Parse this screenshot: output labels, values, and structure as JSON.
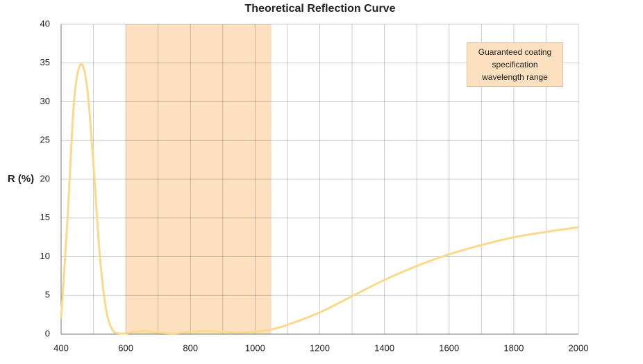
{
  "chart_data": {
    "type": "line",
    "title": "Theoretical Reflection Curve",
    "y_label": "R (%)",
    "annotation": "Guaranteed coating specification wavelength range",
    "band": [
      600,
      1050
    ],
    "band_color": "#fce0c0",
    "x": [
      400,
      420,
      440,
      460,
      480,
      500,
      520,
      540,
      560,
      580,
      600,
      650,
      700,
      750,
      800,
      850,
      900,
      950,
      1000,
      1050,
      1100,
      1200,
      1300,
      1400,
      1500,
      1600,
      1700,
      1800,
      1900,
      2000
    ],
    "series": [
      {
        "name": "R",
        "color": "#fad98a",
        "values": [
          2,
          15,
          30,
          34.8,
          32,
          22,
          10,
          3,
          0.5,
          0.1,
          0.1,
          0.4,
          0.2,
          0.1,
          0.3,
          0.4,
          0.3,
          0.2,
          0.3,
          0.6,
          1.2,
          2.8,
          4.9,
          7.0,
          8.8,
          10.3,
          11.5,
          12.5,
          13.2,
          13.8
        ]
      }
    ],
    "xlim": [
      400,
      2000
    ],
    "xticks": [
      400,
      600,
      800,
      1000,
      1200,
      1400,
      1600,
      1800,
      2000
    ],
    "ylim": [
      0,
      40
    ],
    "yticks": [
      0,
      5,
      10,
      15,
      20,
      25,
      30,
      35,
      40
    ],
    "grid": true
  }
}
